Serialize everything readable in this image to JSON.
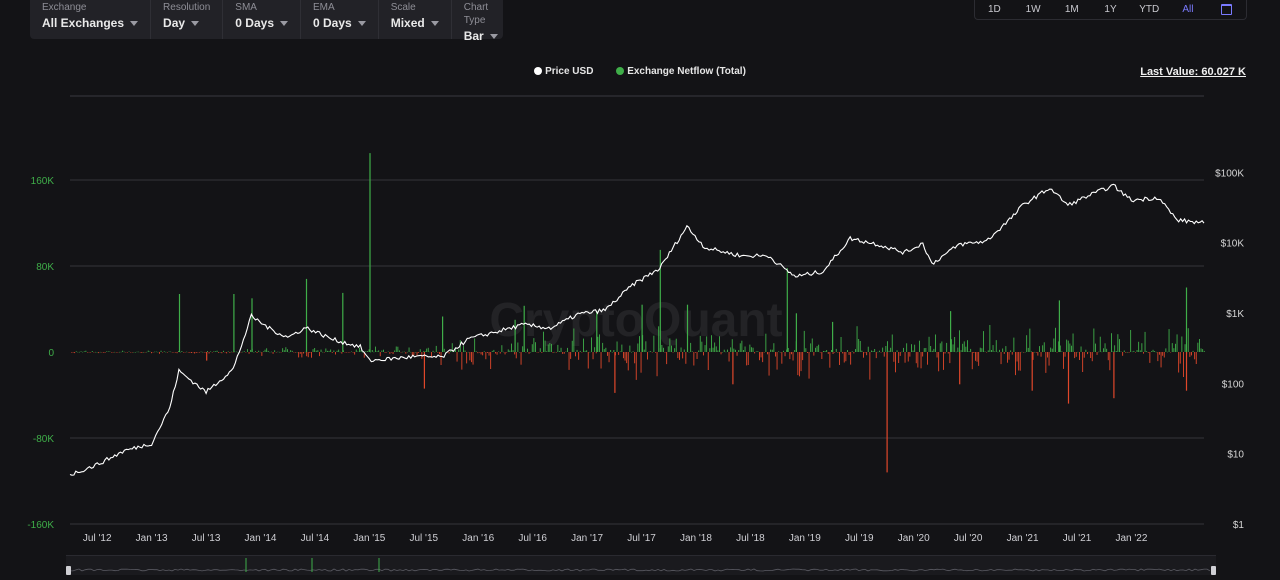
{
  "toolbar": {
    "controls": [
      {
        "label": "Exchange",
        "value": "All Exchanges"
      },
      {
        "label": "Resolution",
        "value": "Day"
      },
      {
        "label": "SMA",
        "value": "0 Days"
      },
      {
        "label": "EMA",
        "value": "0 Days"
      },
      {
        "label": "Scale",
        "value": "Mixed"
      },
      {
        "label": "Chart Type",
        "value": "Bar"
      }
    ]
  },
  "range_buttons": [
    "1D",
    "1W",
    "1M",
    "1Y",
    "YTD",
    "All"
  ],
  "active_range": "All",
  "icons": {
    "calendar": "calendar-icon"
  },
  "colors": {
    "price": "#ffffff",
    "netflow_positive": "#3fae49",
    "netflow_negative": "#e0472a",
    "accent": "#7b7bff"
  },
  "legend": [
    {
      "name": "Price USD",
      "color": "#ffffff"
    },
    {
      "name": "Exchange Netflow (Total)",
      "color": "#3fae49"
    }
  ],
  "last_value": "Last Value: 60.027 K",
  "watermark": "CryptoQuant",
  "chart_data": {
    "type": "bar",
    "x_ticks": [
      "Jul '12",
      "Jan '13",
      "Jul '13",
      "Jan '14",
      "Jul '14",
      "Jan '15",
      "Jul '15",
      "Jan '16",
      "Jul '16",
      "Jan '17",
      "Jul '17",
      "Jan '18",
      "Jul '18",
      "Jan '19",
      "Jul '19",
      "Jan '20",
      "Jul '20",
      "Jan '21",
      "Jul '21",
      "Jan '22"
    ],
    "x_range": [
      "2012-04",
      "2022-09"
    ],
    "left_axis": {
      "ticks": [
        "160K",
        "80K",
        "0",
        "-80K",
        "-160K"
      ],
      "range": [
        -160000,
        160000
      ]
    },
    "right_axis": {
      "scale": "log",
      "ticks": [
        "$100K",
        "$10K",
        "$1K",
        "$100",
        "$10",
        "$1"
      ],
      "range": [
        1,
        1000000
      ]
    },
    "grid": true,
    "series": [
      {
        "name": "Price USD",
        "type": "line",
        "points": [
          [
            "2012-04",
            5
          ],
          [
            "2012-07",
            7
          ],
          [
            "2012-10",
            11
          ],
          [
            "2013-01",
            14
          ],
          [
            "2013-03",
            45
          ],
          [
            "2013-04",
            150
          ],
          [
            "2013-06",
            95
          ],
          [
            "2013-07",
            75
          ],
          [
            "2013-10",
            160
          ],
          [
            "2013-12",
            900
          ],
          [
            "2014-02",
            600
          ],
          [
            "2014-04",
            450
          ],
          [
            "2014-06",
            620
          ],
          [
            "2014-09",
            420
          ],
          [
            "2014-12",
            330
          ],
          [
            "2015-01",
            210
          ],
          [
            "2015-06",
            240
          ],
          [
            "2015-09",
            235
          ],
          [
            "2015-12",
            430
          ],
          [
            "2016-06",
            680
          ],
          [
            "2016-09",
            610
          ],
          [
            "2016-12",
            960
          ],
          [
            "2017-03",
            1100
          ],
          [
            "2017-06",
            2500
          ],
          [
            "2017-09",
            4300
          ],
          [
            "2017-12",
            17000
          ],
          [
            "2018-02",
            8500
          ],
          [
            "2018-06",
            6500
          ],
          [
            "2018-09",
            6500
          ],
          [
            "2018-11",
            4000
          ],
          [
            "2018-12",
            3300
          ],
          [
            "2019-03",
            3900
          ],
          [
            "2019-06",
            11500
          ],
          [
            "2019-09",
            9500
          ],
          [
            "2019-12",
            7200
          ],
          [
            "2020-02",
            9800
          ],
          [
            "2020-03",
            5000
          ],
          [
            "2020-06",
            9400
          ],
          [
            "2020-09",
            10500
          ],
          [
            "2020-12",
            24000
          ],
          [
            "2021-01",
            34000
          ],
          [
            "2021-04",
            60000
          ],
          [
            "2021-06",
            34000
          ],
          [
            "2021-08",
            45000
          ],
          [
            "2021-11",
            65000
          ],
          [
            "2022-01",
            40000
          ],
          [
            "2022-04",
            44000
          ],
          [
            "2022-06",
            21000
          ],
          [
            "2022-09",
            19000
          ]
        ]
      },
      {
        "name": "Exchange Netflow (Total)",
        "type": "bar",
        "spikes": [
          [
            "2013-04",
            54000
          ],
          [
            "2013-07",
            -8000
          ],
          [
            "2013-10",
            54000
          ],
          [
            "2013-12",
            50000
          ],
          [
            "2014-06",
            68000
          ],
          [
            "2014-10",
            55000
          ],
          [
            "2015-01",
            185000
          ],
          [
            "2015-07",
            -34000
          ],
          [
            "2015-09",
            33000
          ],
          [
            "2016-05",
            30000
          ],
          [
            "2016-06",
            43000
          ],
          [
            "2017-02",
            38000
          ],
          [
            "2017-04",
            -38000
          ],
          [
            "2017-07",
            44000
          ],
          [
            "2017-09",
            95000
          ],
          [
            "2017-12",
            44000
          ],
          [
            "2018-05",
            -30000
          ],
          [
            "2018-11",
            78000
          ],
          [
            "2018-12",
            36000
          ],
          [
            "2019-04",
            28000
          ],
          [
            "2019-10",
            -112000
          ],
          [
            "2020-05",
            38000
          ],
          [
            "2020-06",
            -30000
          ],
          [
            "2021-02",
            -36000
          ],
          [
            "2021-05",
            48000
          ],
          [
            "2021-06",
            -48000
          ],
          [
            "2021-11",
            -43000
          ],
          [
            "2022-07",
            60000
          ],
          [
            "2022-07",
            -36000
          ]
        ]
      }
    ]
  }
}
